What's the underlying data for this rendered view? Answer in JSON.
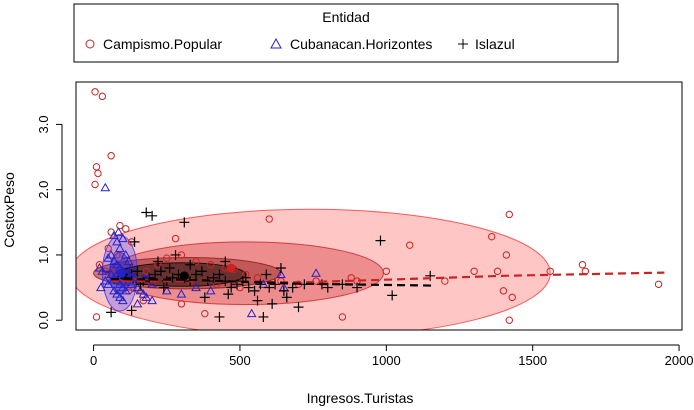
{
  "chart_data": {
    "type": "scatter",
    "title": "",
    "xlabel": "Ingresos.Turistas",
    "ylabel": "CostoxPeso",
    "xlim": [
      -60,
      2010
    ],
    "ylim": [
      -0.15,
      3.65
    ],
    "x_ticks": [
      0,
      500,
      1000,
      1500,
      2000
    ],
    "x_tick_labels": [
      "0",
      "500",
      "1000",
      "1500",
      "2000"
    ],
    "y_ticks": [
      0,
      1,
      2,
      3
    ],
    "y_tick_labels": [
      "0.0",
      "1.0",
      "2.0",
      "3.0"
    ],
    "legend": {
      "title": "Entidad",
      "position": "top",
      "entries": [
        {
          "label": "Campismo.Popular",
          "symbol": "circle",
          "color": "#cc2222"
        },
        {
          "label": "Cubanacan.Horizontes",
          "symbol": "triangle",
          "color": "#2222cc"
        },
        {
          "label": "Islazul",
          "symbol": "plus",
          "color": "#000000"
        }
      ]
    },
    "series": [
      {
        "name": "Campismo.Popular",
        "symbol": "circle",
        "color": "#cc2222",
        "points": [
          [
            5,
            3.5
          ],
          [
            30,
            3.43
          ],
          [
            60,
            2.52
          ],
          [
            10,
            2.35
          ],
          [
            15,
            2.25
          ],
          [
            5,
            2.08
          ],
          [
            60,
            1.35
          ],
          [
            90,
            1.45
          ],
          [
            110,
            1.4
          ],
          [
            130,
            1.2
          ],
          [
            50,
            1.1
          ],
          [
            80,
            1.0
          ],
          [
            20,
            0.85
          ],
          [
            40,
            0.75
          ],
          [
            70,
            0.7
          ],
          [
            100,
            0.65
          ],
          [
            150,
            0.6
          ],
          [
            200,
            0.55
          ],
          [
            250,
            0.95
          ],
          [
            280,
            1.25
          ],
          [
            300,
            1.0
          ],
          [
            350,
            0.9
          ],
          [
            400,
            0.85
          ],
          [
            450,
            0.8
          ],
          [
            480,
            0.78
          ],
          [
            520,
            0.7
          ],
          [
            560,
            0.65
          ],
          [
            600,
            1.55
          ],
          [
            640,
            0.6
          ],
          [
            700,
            0.55
          ],
          [
            760,
            0.6
          ],
          [
            880,
            0.65
          ],
          [
            900,
            0.6
          ],
          [
            1000,
            0.75
          ],
          [
            1080,
            1.15
          ],
          [
            1200,
            0.6
          ],
          [
            1300,
            0.75
          ],
          [
            1360,
            1.28
          ],
          [
            1380,
            0.75
          ],
          [
            1400,
            0.45
          ],
          [
            1410,
            1.0
          ],
          [
            1420,
            1.62
          ],
          [
            1430,
            0.35
          ],
          [
            1420,
            0.0
          ],
          [
            1560,
            0.75
          ],
          [
            1670,
            0.85
          ],
          [
            1680,
            0.75
          ],
          [
            1930,
            0.55
          ],
          [
            380,
            0.1
          ],
          [
            300,
            0.25
          ],
          [
            170,
            0.3
          ],
          [
            120,
            0.45
          ],
          [
            10,
            0.05
          ],
          [
            850,
            0.05
          ],
          [
            180,
            0.75
          ],
          [
            220,
            0.85
          ],
          [
            330,
            0.6
          ],
          [
            420,
            0.55
          ],
          [
            500,
            0.5
          ]
        ]
      },
      {
        "name": "Cubanacan.Horizontes",
        "symbol": "triangle",
        "color": "#2222cc",
        "points": [
          [
            40,
            2.03
          ],
          [
            70,
            1.3
          ],
          [
            80,
            1.2
          ],
          [
            90,
            1.1
          ],
          [
            60,
            1.0
          ],
          [
            50,
            0.95
          ],
          [
            70,
            0.9
          ],
          [
            80,
            0.85
          ],
          [
            90,
            0.8
          ],
          [
            100,
            0.75
          ],
          [
            110,
            0.7
          ],
          [
            60,
            0.7
          ],
          [
            70,
            0.65
          ],
          [
            80,
            0.6
          ],
          [
            90,
            0.55
          ],
          [
            100,
            0.5
          ],
          [
            110,
            0.45
          ],
          [
            70,
            0.45
          ],
          [
            80,
            0.4
          ],
          [
            90,
            0.35
          ],
          [
            100,
            0.3
          ],
          [
            120,
            0.6
          ],
          [
            130,
            0.55
          ],
          [
            140,
            0.65
          ],
          [
            150,
            0.5
          ],
          [
            160,
            0.45
          ],
          [
            170,
            0.4
          ],
          [
            180,
            0.35
          ],
          [
            200,
            0.3
          ],
          [
            50,
            0.55
          ],
          [
            40,
            0.6
          ],
          [
            30,
            0.75
          ],
          [
            20,
            0.8
          ],
          [
            25,
            0.5
          ],
          [
            110,
            1.0
          ],
          [
            120,
            0.9
          ],
          [
            130,
            0.8
          ],
          [
            200,
            0.55
          ],
          [
            250,
            0.45
          ],
          [
            300,
            0.4
          ],
          [
            350,
            0.5
          ],
          [
            400,
            0.45
          ],
          [
            540,
            0.1
          ],
          [
            580,
            0.55
          ],
          [
            650,
            0.5
          ],
          [
            760,
            0.72
          ],
          [
            640,
            0.7
          ],
          [
            150,
            0.25
          ],
          [
            100,
            1.25
          ],
          [
            85,
            1.35
          ]
        ]
      },
      {
        "name": "Islazul",
        "symbol": "plus",
        "color": "#000000",
        "points": [
          [
            110,
            0.65
          ],
          [
            130,
            0.7
          ],
          [
            150,
            0.75
          ],
          [
            170,
            0.6
          ],
          [
            190,
            0.65
          ],
          [
            210,
            0.7
          ],
          [
            230,
            0.75
          ],
          [
            250,
            0.6
          ],
          [
            270,
            0.65
          ],
          [
            290,
            0.7
          ],
          [
            310,
            0.65
          ],
          [
            330,
            0.6
          ],
          [
            350,
            0.7
          ],
          [
            370,
            0.75
          ],
          [
            390,
            0.6
          ],
          [
            410,
            0.65
          ],
          [
            430,
            0.7
          ],
          [
            450,
            0.6
          ],
          [
            470,
            0.5
          ],
          [
            490,
            0.55
          ],
          [
            510,
            0.6
          ],
          [
            530,
            0.5
          ],
          [
            550,
            0.45
          ],
          [
            570,
            0.55
          ],
          [
            600,
            0.5
          ],
          [
            620,
            0.55
          ],
          [
            650,
            0.45
          ],
          [
            680,
            0.5
          ],
          [
            700,
            0.2
          ],
          [
            720,
            0.55
          ],
          [
            180,
            1.65
          ],
          [
            200,
            1.6
          ],
          [
            310,
            1.5
          ],
          [
            140,
            1.2
          ],
          [
            280,
            1.0
          ],
          [
            330,
            0.85
          ],
          [
            450,
            0.9
          ],
          [
            560,
            0.3
          ],
          [
            610,
            0.25
          ],
          [
            640,
            0.8
          ],
          [
            780,
            0.55
          ],
          [
            800,
            0.5
          ],
          [
            850,
            0.55
          ],
          [
            980,
            1.22
          ],
          [
            1020,
            0.38
          ],
          [
            1150,
            0.68
          ],
          [
            580,
            0.05
          ],
          [
            430,
            0.05
          ],
          [
            60,
            0.12
          ],
          [
            130,
            0.15
          ],
          [
            220,
            0.9
          ],
          [
            260,
            0.8
          ],
          [
            160,
            0.55
          ],
          [
            240,
            0.5
          ],
          [
            380,
            0.35
          ],
          [
            460,
            0.4
          ],
          [
            520,
            0.65
          ],
          [
            590,
            0.7
          ],
          [
            660,
            0.35
          ],
          [
            900,
            0.5
          ]
        ]
      }
    ],
    "fit_lines": [
      {
        "color": "#cc2222",
        "style": "dashed",
        "points": [
          [
            60,
            0.6
          ],
          [
            300,
            0.6
          ],
          [
            700,
            0.58
          ],
          [
            1000,
            0.62
          ],
          [
            1400,
            0.68
          ],
          [
            1950,
            0.73
          ]
        ]
      },
      {
        "color": "#000000",
        "style": "dashed",
        "points": [
          [
            60,
            0.63
          ],
          [
            300,
            0.62
          ],
          [
            700,
            0.56
          ],
          [
            1160,
            0.53
          ]
        ]
      },
      {
        "color": "#2222cc",
        "style": "dashed",
        "points": [
          [
            30,
            0.75
          ],
          [
            200,
            0.66
          ]
        ]
      }
    ],
    "ellipses": [
      {
        "color": "#ff3333",
        "center": [
          740,
          0.72
        ],
        "rx": 820,
        "ry": 0.98,
        "layer": "outer"
      },
      {
        "color": "#cc2222",
        "center": [
          520,
          0.72
        ],
        "rx": 470,
        "ry": 0.48,
        "layer": "middle"
      },
      {
        "color": "#8b1a1a",
        "center": [
          320,
          0.72
        ],
        "rx": 320,
        "ry": 0.24,
        "layer": "inner"
      },
      {
        "color": "#3333ff",
        "center": [
          90,
          0.72
        ],
        "rx": 60,
        "ry": 0.58,
        "layer": "outer"
      },
      {
        "color": "#2222cc",
        "center": [
          90,
          0.72
        ],
        "rx": 35,
        "ry": 0.32,
        "layer": "inner"
      },
      {
        "color": "#000000",
        "center": [
          300,
          0.7
        ],
        "rx": 220,
        "ry": 0.18,
        "layer": "inner"
      }
    ],
    "centers": [
      {
        "color": "#cc2222",
        "point": [
          470,
          0.8
        ]
      },
      {
        "color": "#000000",
        "point": [
          310,
          0.68
        ]
      },
      {
        "color": "#2222cc",
        "point": [
          95,
          0.72
        ]
      }
    ]
  }
}
